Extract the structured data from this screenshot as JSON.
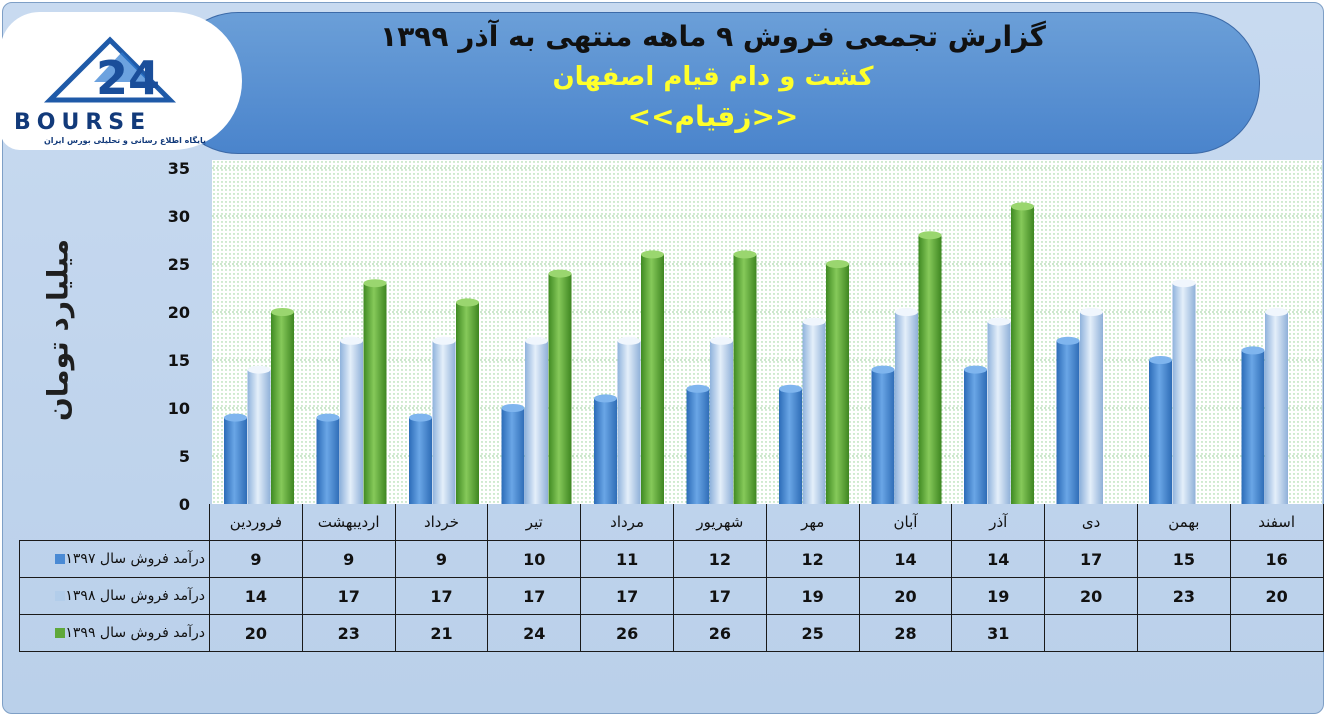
{
  "header": {
    "title": "گزارش تجمعی فروش ۹ ماهه منتهی به آذر ۱۳۹۹",
    "company": "کشت و دام قیام اصفهان",
    "symbol": "<<زقیام>>"
  },
  "logo": {
    "name": "BOURSE",
    "number": "24",
    "tagline": "پایگاه اطلاع رسانی و تحلیلی بورس ایران"
  },
  "colors": {
    "series_1397": "#4a8ad4",
    "series_1398": "#b2cdea",
    "series_1399": "#5fa83a"
  },
  "chart_data": {
    "type": "bar",
    "title": "گزارش تجمعی فروش ۹ ماهه منتهی به آذر ۱۳۹۹",
    "ylabel": "میلیارد تومان",
    "xlabel": "",
    "ylim": [
      0,
      35
    ],
    "yticks": [
      0,
      5,
      10,
      15,
      20,
      25,
      30,
      35
    ],
    "grid": true,
    "categories": [
      "فروردین",
      "اردیبهشت",
      "خرداد",
      "تیر",
      "مرداد",
      "شهریور",
      "مهر",
      "آبان",
      "آذر",
      "دی",
      "بهمن",
      "اسفند"
    ],
    "series": [
      {
        "name": "درآمد فروش سال ۱۳۹۷",
        "values": [
          9,
          9,
          9,
          10,
          11,
          12,
          12,
          14,
          14,
          17,
          15,
          16
        ]
      },
      {
        "name": "درآمد فروش سال ۱۳۹۸",
        "values": [
          14,
          17,
          17,
          17,
          17,
          17,
          19,
          20,
          19,
          20,
          23,
          20
        ]
      },
      {
        "name": "درآمد فروش سال ۱۳۹۹",
        "values": [
          20,
          23,
          21,
          24,
          26,
          26,
          25,
          28,
          31,
          null,
          null,
          null
        ]
      }
    ]
  }
}
